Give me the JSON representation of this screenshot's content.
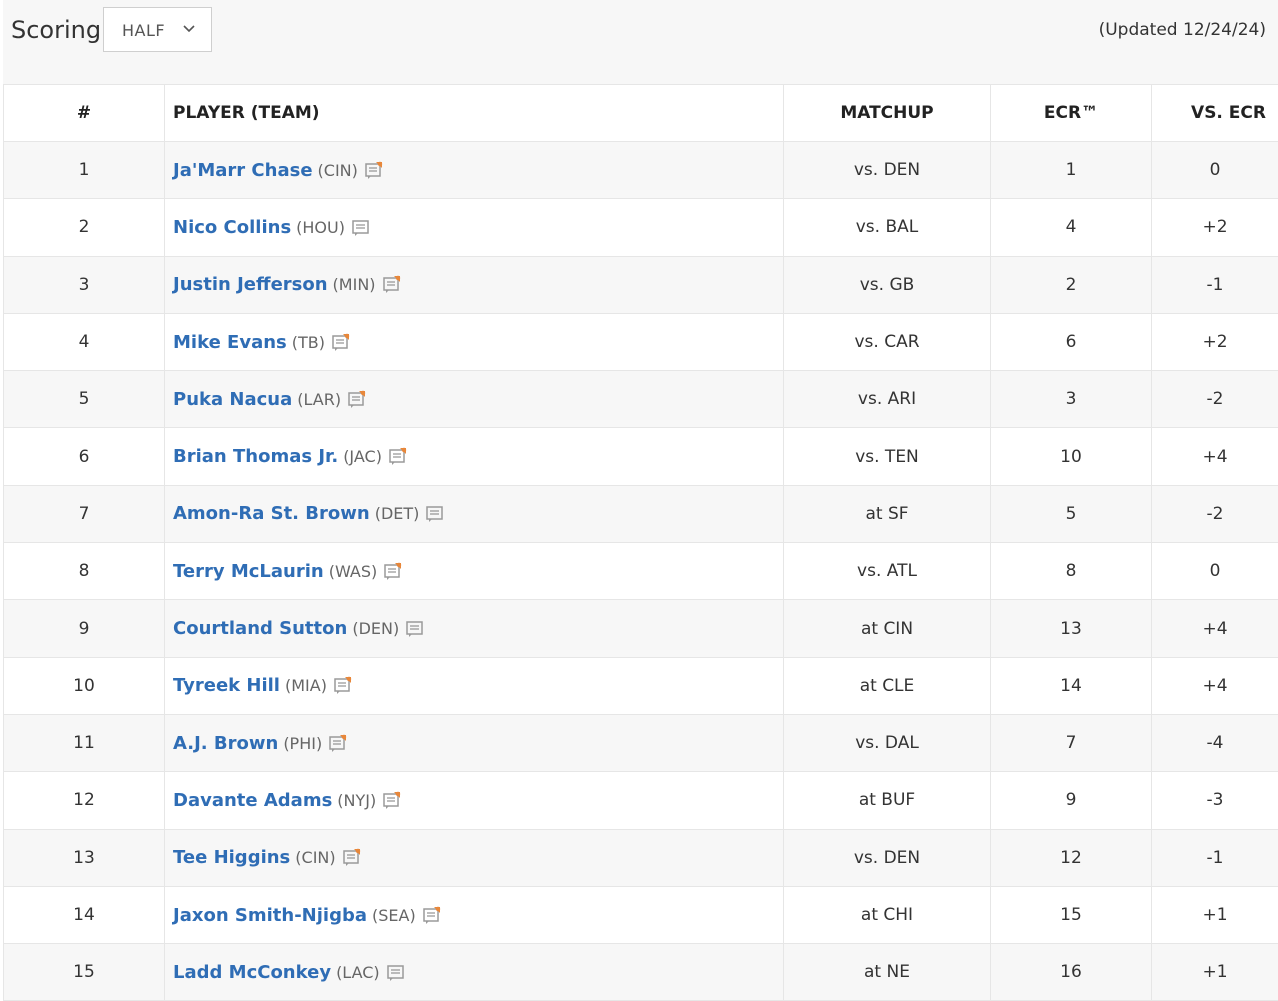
{
  "header": {
    "scoring_label": "Scoring",
    "scoring_select": {
      "selected": "HALF"
    },
    "updated": "(Updated 12/24/24)"
  },
  "table": {
    "columns": [
      "#",
      "PLAYER (TEAM)",
      "MATCHUP",
      "ECR™",
      "VS. ECR"
    ],
    "rows": [
      {
        "rank": "1",
        "name": "Ja'Marr Chase",
        "team": "(CIN)",
        "note": "new",
        "matchup": "vs. DEN",
        "ecr": "1",
        "vs_ecr": "0"
      },
      {
        "rank": "2",
        "name": "Nico Collins",
        "team": "(HOU)",
        "note": "plain",
        "matchup": "vs. BAL",
        "ecr": "4",
        "vs_ecr": "+2"
      },
      {
        "rank": "3",
        "name": "Justin Jefferson",
        "team": "(MIN)",
        "note": "new",
        "matchup": "vs. GB",
        "ecr": "2",
        "vs_ecr": "-1"
      },
      {
        "rank": "4",
        "name": "Mike Evans",
        "team": "(TB)",
        "note": "new",
        "matchup": "vs. CAR",
        "ecr": "6",
        "vs_ecr": "+2"
      },
      {
        "rank": "5",
        "name": "Puka Nacua",
        "team": "(LAR)",
        "note": "new",
        "matchup": "vs. ARI",
        "ecr": "3",
        "vs_ecr": "-2"
      },
      {
        "rank": "6",
        "name": "Brian Thomas Jr.",
        "team": "(JAC)",
        "note": "new",
        "matchup": "vs. TEN",
        "ecr": "10",
        "vs_ecr": "+4"
      },
      {
        "rank": "7",
        "name": "Amon-Ra St. Brown",
        "team": "(DET)",
        "note": "plain",
        "matchup": "at SF",
        "ecr": "5",
        "vs_ecr": "-2"
      },
      {
        "rank": "8",
        "name": "Terry McLaurin",
        "team": "(WAS)",
        "note": "new",
        "matchup": "vs. ATL",
        "ecr": "8",
        "vs_ecr": "0"
      },
      {
        "rank": "9",
        "name": "Courtland Sutton",
        "team": "(DEN)",
        "note": "plain",
        "matchup": "at CIN",
        "ecr": "13",
        "vs_ecr": "+4"
      },
      {
        "rank": "10",
        "name": "Tyreek Hill",
        "team": "(MIA)",
        "note": "new",
        "matchup": "at CLE",
        "ecr": "14",
        "vs_ecr": "+4"
      },
      {
        "rank": "11",
        "name": "A.J. Brown",
        "team": "(PHI)",
        "note": "new",
        "matchup": "vs. DAL",
        "ecr": "7",
        "vs_ecr": "-4"
      },
      {
        "rank": "12",
        "name": "Davante Adams",
        "team": "(NYJ)",
        "note": "new",
        "matchup": "at BUF",
        "ecr": "9",
        "vs_ecr": "-3"
      },
      {
        "rank": "13",
        "name": "Tee Higgins",
        "team": "(CIN)",
        "note": "new",
        "matchup": "vs. DEN",
        "ecr": "12",
        "vs_ecr": "-1"
      },
      {
        "rank": "14",
        "name": "Jaxon Smith-Njigba",
        "team": "(SEA)",
        "note": "new",
        "matchup": "at CHI",
        "ecr": "15",
        "vs_ecr": "+1"
      },
      {
        "rank": "15",
        "name": "Ladd McConkey",
        "team": "(LAC)",
        "note": "plain",
        "matchup": "at NE",
        "ecr": "16",
        "vs_ecr": "+1"
      }
    ]
  },
  "icons": {
    "note_new": "notes-new-icon",
    "note_plain": "notes-icon",
    "chevron": "chevron-down-icon"
  },
  "colors": {
    "link": "#2f6db5",
    "note_accent": "#e8873a",
    "note_gray": "#9a9a9a",
    "row_stripe": "#f7f7f7"
  }
}
